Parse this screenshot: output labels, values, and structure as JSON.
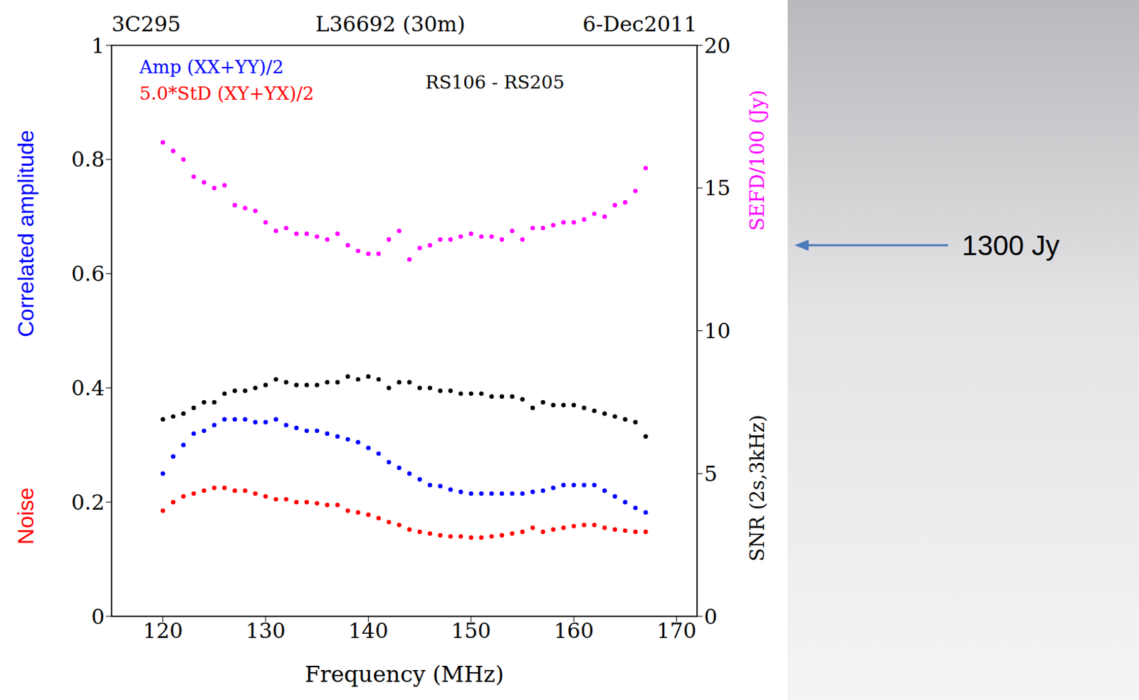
{
  "chart_data": {
    "type": "scatter",
    "title": "L36692 (30m)",
    "xlabel": "Frequency (MHz)",
    "ylabel": [
      {
        "text": "Correlated amplitude",
        "color": "#0000ff"
      },
      {
        "text": "Noise",
        "color": "#ff0000"
      }
    ],
    "annotations": [
      {
        "text": "3C295"
      },
      {
        "text": "6-Dec2011"
      },
      {
        "text": "RS106  -  RS205"
      },
      {
        "text": "1300 Jy",
        "y2": 13
      }
    ],
    "x": [
      120,
      121,
      122,
      123,
      124,
      125,
      126,
      127,
      128,
      129,
      130,
      131,
      132,
      133,
      134,
      135,
      136,
      137,
      138,
      139,
      140,
      141,
      142,
      143,
      144,
      145,
      146,
      147,
      148,
      149,
      150,
      151,
      152,
      153,
      154,
      155,
      156,
      157,
      158,
      159,
      160,
      161,
      162,
      163,
      164,
      165,
      166,
      167
    ],
    "xlim": [
      115,
      172
    ],
    "xticks": [
      120,
      130,
      140,
      150,
      160,
      170
    ],
    "ylim": [
      0,
      1
    ],
    "yticks": [
      0,
      0.2,
      0.4,
      0.6,
      0.8,
      1
    ],
    "y2lim": [
      0,
      20
    ],
    "y2ticks": [
      0,
      5,
      10,
      15,
      20
    ],
    "grid": false,
    "legend": "upper left",
    "marker": "circle",
    "series": [
      {
        "name": "Amp (XX+YY)/2",
        "color": "#0000ff",
        "values": [
          0.25,
          0.28,
          0.3,
          0.32,
          0.325,
          0.335,
          0.345,
          0.345,
          0.345,
          0.34,
          0.34,
          0.345,
          0.335,
          0.33,
          0.325,
          0.325,
          0.32,
          0.315,
          0.31,
          0.305,
          0.295,
          0.285,
          0.27,
          0.26,
          0.25,
          0.24,
          0.23,
          0.228,
          0.222,
          0.218,
          0.215,
          0.215,
          0.215,
          0.215,
          0.215,
          0.215,
          0.218,
          0.22,
          0.225,
          0.23,
          0.23,
          0.23,
          0.23,
          0.22,
          0.21,
          0.2,
          0.19,
          0.182
        ]
      },
      {
        "name": "5.0*StD (XY+YX)/2",
        "color": "#ff0000",
        "values": [
          0.185,
          0.2,
          0.21,
          0.215,
          0.22,
          0.225,
          0.225,
          0.22,
          0.22,
          0.215,
          0.21,
          0.205,
          0.205,
          0.2,
          0.2,
          0.198,
          0.195,
          0.195,
          0.185,
          0.182,
          0.178,
          0.172,
          0.165,
          0.16,
          0.152,
          0.148,
          0.145,
          0.142,
          0.14,
          0.14,
          0.138,
          0.138,
          0.14,
          0.142,
          0.145,
          0.148,
          0.155,
          0.148,
          0.152,
          0.155,
          0.158,
          0.16,
          0.16,
          0.155,
          0.152,
          0.15,
          0.148,
          0.148
        ]
      },
      {
        "name": "SEFD/100 (Jy)",
        "color": "#ff00ff",
        "axis": "y2",
        "values": [
          16.6,
          16.3,
          16.0,
          15.4,
          15.2,
          15.0,
          15.1,
          14.4,
          14.3,
          14.2,
          13.8,
          13.5,
          13.6,
          13.4,
          13.4,
          13.3,
          13.2,
          13.4,
          13.0,
          12.8,
          12.7,
          12.7,
          13.2,
          13.5,
          12.5,
          12.9,
          13.0,
          13.2,
          13.2,
          13.3,
          13.4,
          13.3,
          13.3,
          13.2,
          13.5,
          13.2,
          13.6,
          13.6,
          13.7,
          13.8,
          13.8,
          13.9,
          14.1,
          14.0,
          14.4,
          14.5,
          14.9,
          15.7
        ]
      },
      {
        "name": "SNR (2s,3kHz)",
        "color": "#000000",
        "axis": "y2",
        "values": [
          6.9,
          7.0,
          7.1,
          7.3,
          7.5,
          7.5,
          7.8,
          7.9,
          7.9,
          8.0,
          8.1,
          8.3,
          8.2,
          8.1,
          8.1,
          8.1,
          8.2,
          8.2,
          8.4,
          8.3,
          8.4,
          8.3,
          8.0,
          8.2,
          8.2,
          8.0,
          8.0,
          7.9,
          7.9,
          7.8,
          7.8,
          7.8,
          7.7,
          7.7,
          7.7,
          7.6,
          7.3,
          7.5,
          7.4,
          7.4,
          7.4,
          7.3,
          7.2,
          7.1,
          7.0,
          6.9,
          6.8,
          6.3
        ]
      }
    ]
  }
}
